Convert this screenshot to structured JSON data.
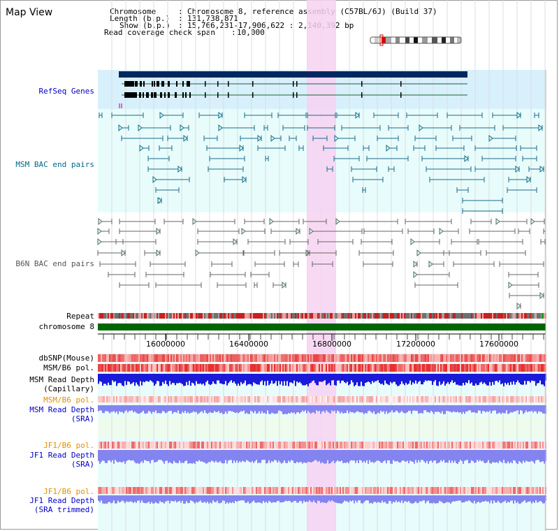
{
  "app": {
    "title": "Map View"
  },
  "info": {
    "chromosome_label": "Chromosome",
    "chromosome_value": "Chromosome 8, reference assembly (C57BL/6J) (Build 37)",
    "length_label": "Length (b.p.)",
    "length_value": "131,738,871",
    "show_label": "Show (b.p.)",
    "show_value": "15,766,231-17,906,622 : 2,140,392 bp",
    "coverage_label": "Read coverage check span",
    "coverage_value": "10,000"
  },
  "tracks": {
    "refseq": "RefSeq Genes",
    "msm_bac": "MSM BAC end pairs",
    "b6n_bac": "B6N BAC end pairs",
    "repeat": "Repeat",
    "chromosome": "chromosome 8",
    "dbsnp": "dbSNP(Mouse)",
    "msm_b6_pol_1": "MSM/B6 pol.",
    "msm_depth_cap_1": "MSM Read Depth",
    "msm_depth_cap_2": "(Capillary)",
    "msm_b6_pol_2": "MSM/B6 pol.",
    "msm_depth_sra_1": "MSM Read Depth",
    "msm_depth_sra_2": "(SRA)",
    "jf1_pol_1": "JF1/B6 pol.",
    "jf1_depth_sra_1": "JF1 Read Depth",
    "jf1_depth_sra_2": "(SRA)",
    "jf1_pol_2": "JF1/B6 pol.",
    "jf1_trim_1": "JF1 Read Depth",
    "jf1_trim_2": "(SRA trimmed)"
  },
  "ruler": {
    "ticks": [
      "16000000",
      "16400000",
      "16800000",
      "17200000",
      "17600000"
    ]
  },
  "colors": {
    "selection": "#f7d2f2",
    "refseq_bg": "#d8f0fb",
    "track_bg": "#e8fcfc",
    "msm_bac": "#1a6a8a",
    "b6n_bac": "#666666",
    "gene": "#002860",
    "chromosome_bar": "#006600",
    "depth_blue": "#1a1ad8",
    "depth_light": "#8484f0"
  },
  "icons": {
    "ideogram": "chromosome-ideogram-icon"
  }
}
